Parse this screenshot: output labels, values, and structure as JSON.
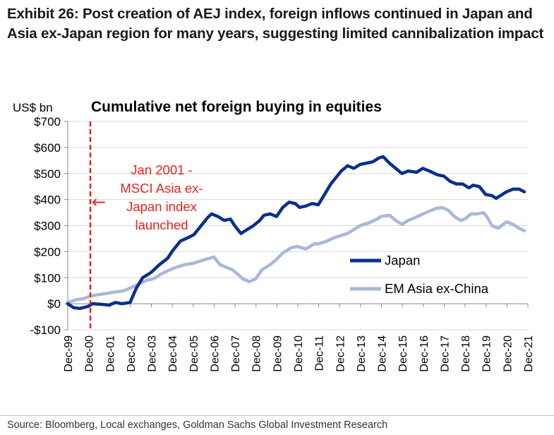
{
  "exhibit": {
    "title": "Exhibit 26: Post creation of AEJ index, foreign inflows continued in Japan and Asia ex-Japan region for many years, suggesting limited cannibalization impact",
    "source": "Source: Bloomberg, Local exchanges, Goldman Sachs Global Investment Research"
  },
  "chart_data": {
    "type": "line",
    "title": "Cumulative net foreign buying in equities",
    "ylabel": "US$ bn",
    "xlabel": "",
    "ylim": [
      -100,
      700
    ],
    "xlim": [
      1999.92,
      2021.92
    ],
    "y_ticks": [
      -100,
      0,
      100,
      200,
      300,
      400,
      500,
      600,
      700
    ],
    "y_tick_labels": [
      "-$100",
      "$0",
      "$100",
      "$200",
      "$300",
      "$400",
      "$500",
      "$600",
      "$700"
    ],
    "x_ticks": [
      1999.92,
      2000.92,
      2001.92,
      2002.92,
      2003.92,
      2004.92,
      2005.92,
      2006.92,
      2007.92,
      2008.92,
      2009.92,
      2010.92,
      2011.92,
      2012.92,
      2013.92,
      2014.92,
      2015.92,
      2016.92,
      2017.92,
      2018.92,
      2019.92,
      2020.92,
      2021.92
    ],
    "x_tick_labels": [
      "Dec-99",
      "Dec-00",
      "Dec-01",
      "Dec-02",
      "Dec-03",
      "Dec-04",
      "Dec-05",
      "Dec-06",
      "Dec-07",
      "Dec-08",
      "Dec-09",
      "Dec-10",
      "Dec-11",
      "Dec-12",
      "Dec-13",
      "Dec-14",
      "Dec-15",
      "Dec-16",
      "Dec-17",
      "Dec-18",
      "Dec-19",
      "Dec-20",
      "Dec-21"
    ],
    "legend": {
      "position": "right",
      "entries": [
        "Japan",
        "EM Asia ex-China"
      ]
    },
    "series": [
      {
        "name": "Japan",
        "color": "#0a2f8c",
        "x": [
          1999.92,
          2000.2,
          2000.5,
          2000.9,
          2001.1,
          2001.5,
          2001.9,
          2002.2,
          2002.5,
          2002.9,
          2003.2,
          2003.5,
          2003.9,
          2004.3,
          2004.7,
          2004.9,
          2005.3,
          2005.7,
          2005.95,
          2006.3,
          2006.6,
          2006.8,
          2007.1,
          2007.4,
          2007.7,
          2007.9,
          2008.2,
          2008.5,
          2008.8,
          2009.1,
          2009.3,
          2009.6,
          2009.9,
          2010.2,
          2010.5,
          2010.8,
          2011.0,
          2011.3,
          2011.6,
          2011.9,
          2012.2,
          2012.5,
          2012.8,
          2013.0,
          2013.3,
          2013.6,
          2013.9,
          2014.2,
          2014.5,
          2014.8,
          2015.0,
          2015.3,
          2015.6,
          2015.9,
          2016.2,
          2016.6,
          2016.9,
          2017.2,
          2017.6,
          2017.9,
          2018.2,
          2018.5,
          2018.8,
          2019.1,
          2019.3,
          2019.6,
          2019.9,
          2020.2,
          2020.4,
          2020.6,
          2020.9,
          2021.2,
          2021.5,
          2021.75
        ],
        "values": [
          0,
          -15,
          -18,
          -10,
          0,
          -2,
          -5,
          5,
          0,
          5,
          60,
          100,
          120,
          150,
          175,
          200,
          240,
          255,
          265,
          300,
          330,
          345,
          335,
          320,
          325,
          300,
          270,
          285,
          300,
          320,
          340,
          345,
          335,
          370,
          390,
          385,
          370,
          375,
          385,
          380,
          420,
          460,
          490,
          510,
          530,
          520,
          535,
          540,
          545,
          560,
          565,
          540,
          520,
          500,
          510,
          505,
          520,
          510,
          495,
          490,
          470,
          460,
          460,
          445,
          455,
          450,
          420,
          415,
          405,
          415,
          430,
          440,
          440,
          430
        ]
      },
      {
        "name": "EM Asia ex-China",
        "color": "#a9b8d9",
        "x": [
          1999.92,
          2000.3,
          2000.7,
          2001.0,
          2001.4,
          2001.8,
          2002.2,
          2002.6,
          2002.9,
          2003.3,
          2003.7,
          2004.0,
          2004.4,
          2004.8,
          2005.1,
          2005.5,
          2005.9,
          2006.3,
          2006.7,
          2006.9,
          2007.2,
          2007.5,
          2007.8,
          2008.1,
          2008.3,
          2008.6,
          2008.9,
          2009.2,
          2009.6,
          2009.9,
          2010.2,
          2010.6,
          2010.9,
          2011.3,
          2011.7,
          2011.9,
          2012.3,
          2012.7,
          2012.9,
          2013.3,
          2013.7,
          2013.9,
          2014.3,
          2014.7,
          2014.9,
          2015.3,
          2015.6,
          2015.9,
          2016.2,
          2016.5,
          2016.9,
          2017.2,
          2017.5,
          2017.8,
          2018.1,
          2018.4,
          2018.7,
          2018.9,
          2019.2,
          2019.5,
          2019.8,
          2020.0,
          2020.2,
          2020.5,
          2020.9,
          2021.2,
          2021.5,
          2021.75
        ],
        "values": [
          5,
          15,
          20,
          30,
          35,
          40,
          45,
          50,
          60,
          75,
          90,
          95,
          115,
          130,
          140,
          150,
          155,
          165,
          175,
          180,
          150,
          140,
          130,
          110,
          95,
          85,
          95,
          130,
          150,
          170,
          195,
          215,
          220,
          210,
          230,
          230,
          240,
          255,
          260,
          270,
          290,
          300,
          310,
          325,
          335,
          340,
          320,
          305,
          320,
          330,
          345,
          355,
          365,
          370,
          360,
          335,
          320,
          325,
          345,
          345,
          350,
          330,
          300,
          290,
          315,
          305,
          290,
          280
        ]
      }
    ],
    "annotation": {
      "text_lines": [
        "Jan 2001 -",
        "MSCI Asia ex-",
        "Japan index",
        "launched"
      ],
      "arrow": "←",
      "x": 2001.0,
      "color": "#e8231e"
    }
  }
}
